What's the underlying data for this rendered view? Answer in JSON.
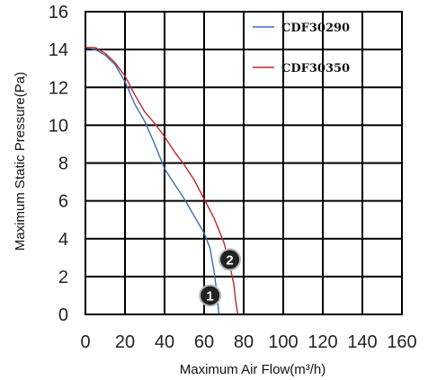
{
  "chart_data": {
    "type": "line",
    "title": "",
    "xlabel": "Maximum Air Flow(m³/h)",
    "ylabel": "Maximum Static Pressure(Pa)",
    "xlim": [
      0,
      160
    ],
    "ylim": [
      0,
      16
    ],
    "xticks": [
      "0",
      "20",
      "40",
      "60",
      "80",
      "100",
      "120",
      "140",
      "160"
    ],
    "yticks": [
      "0",
      "2",
      "4",
      "6",
      "8",
      "10",
      "12",
      "14",
      "16"
    ],
    "grid": true,
    "legend_position": "top-right",
    "series": [
      {
        "name": "CDF30290",
        "color": "#3a6fb5",
        "marker_label": "1",
        "marker_at": [
          63,
          1.0
        ],
        "points": [
          [
            0,
            14.1
          ],
          [
            5,
            14.0
          ],
          [
            10,
            13.7
          ],
          [
            15,
            13.2
          ],
          [
            20,
            12.3
          ],
          [
            25,
            11.1
          ],
          [
            30,
            10.2
          ],
          [
            35,
            9.0
          ],
          [
            40,
            7.7
          ],
          [
            45,
            6.9
          ],
          [
            50,
            6.1
          ],
          [
            55,
            5.2
          ],
          [
            60,
            4.3
          ],
          [
            63,
            3.5
          ],
          [
            65,
            2.3
          ],
          [
            66,
            1.5
          ],
          [
            67,
            0.5
          ],
          [
            67.5,
            0
          ]
        ]
      },
      {
        "name": "CDF30350",
        "color": "#c0282d",
        "marker_label": "2",
        "marker_at": [
          73,
          2.9
        ],
        "points": [
          [
            0,
            14.1
          ],
          [
            5,
            14.1
          ],
          [
            10,
            13.8
          ],
          [
            15,
            13.3
          ],
          [
            20,
            12.6
          ],
          [
            25,
            11.6
          ],
          [
            30,
            10.7
          ],
          [
            35,
            10.1
          ],
          [
            40,
            9.4
          ],
          [
            45,
            8.6
          ],
          [
            50,
            7.9
          ],
          [
            55,
            7.1
          ],
          [
            60,
            6.1
          ],
          [
            65,
            5.1
          ],
          [
            70,
            3.8
          ],
          [
            73,
            2.6
          ],
          [
            75,
            1.6
          ],
          [
            76,
            0.7
          ],
          [
            77,
            0
          ]
        ]
      }
    ]
  }
}
